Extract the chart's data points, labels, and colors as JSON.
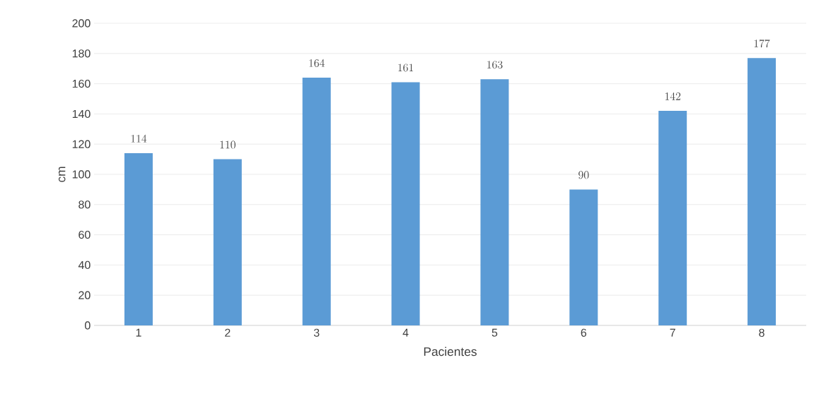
{
  "chart_data": {
    "type": "bar",
    "xlabel": "Pacientes",
    "ylabel": "cm",
    "categories": [
      "1",
      "2",
      "3",
      "4",
      "5",
      "6",
      "7",
      "8"
    ],
    "values": [
      114,
      110,
      164,
      161,
      163,
      90,
      142,
      177
    ],
    "color": "#5b9bd5",
    "ylim": [
      0,
      200
    ],
    "yticks": [
      0,
      20,
      40,
      60,
      80,
      100,
      120,
      140,
      160,
      180,
      200
    ],
    "grid": "y",
    "data_labels": true
  }
}
